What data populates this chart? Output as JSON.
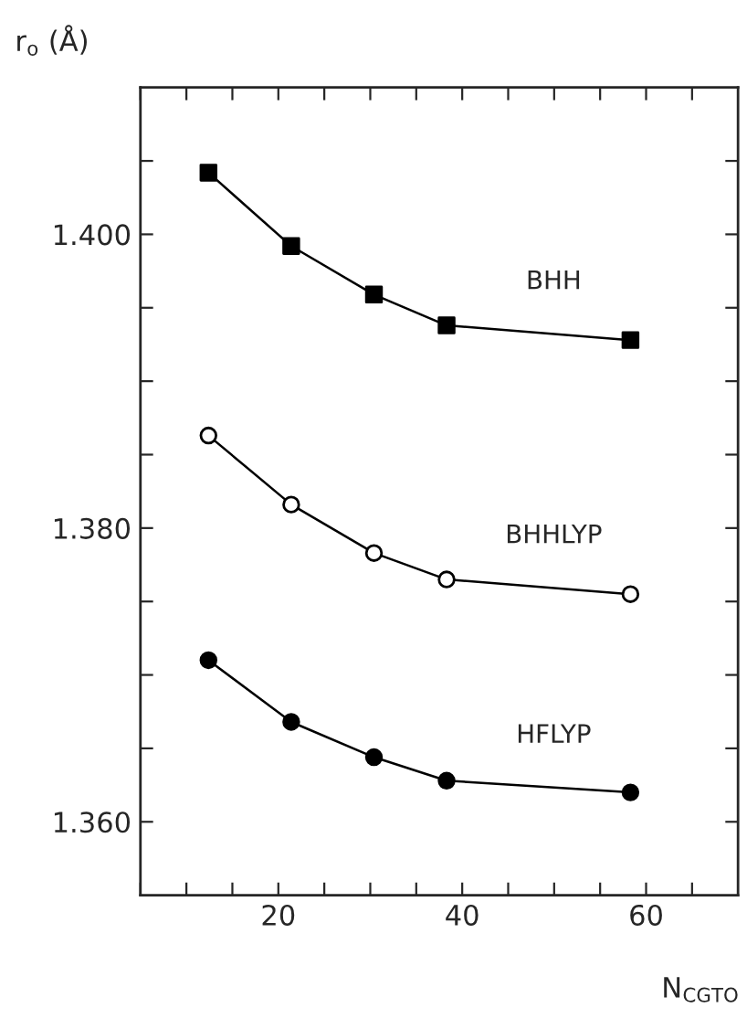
{
  "chart_data": {
    "type": "line",
    "ylabel": "r$_{o}$ (Å)",
    "xlabel": "N$_{CGTO}$",
    "xlim": [
      5,
      70
    ],
    "ylim": [
      1.355,
      1.41
    ],
    "xticks": [
      {
        "value": 5,
        "label": null
      },
      {
        "value": 10,
        "label": null
      },
      {
        "value": 15,
        "label": null
      },
      "20",
      {
        "value": 25,
        "label": null
      },
      {
        "value": 30,
        "label": null
      },
      {
        "value": 35,
        "label": null
      },
      40,
      {
        "value": 45,
        "label": null
      },
      {
        "value": 50,
        "label": null
      },
      {
        "value": 55,
        "label": null
      },
      60,
      {
        "value": 65,
        "label": null
      }
    ],
    "yticks": [
      {
        "value": 1.36,
        "label": "1.360"
      },
      {
        "value": 1.365,
        "label": null
      },
      {
        "value": 1.37,
        "label": null
      },
      {
        "value": 1.375,
        "label": null
      },
      {
        "value": 1.38,
        "label": "1.380"
      },
      {
        "value": 1.385,
        "label": null
      },
      {
        "value": 1.39,
        "label": null
      },
      {
        "value": 1.395,
        "label": null
      },
      {
        "value": 1.4,
        "label": "1.400"
      },
      {
        "value": 1.405,
        "label": null
      }
    ],
    "grid": false,
    "legend": false,
    "line_style": "solid",
    "series": [
      {
        "name": "BHH",
        "color": "#000000",
        "marker": "square",
        "x": [
          12.4,
          21.4,
          30.4,
          38.3,
          58.3
        ],
        "values": [
          1.4042,
          1.3992,
          1.3959,
          1.3938,
          1.3928
        ]
      },
      {
        "name": "BHHLYP",
        "color": "#000000",
        "marker": "circle",
        "colors": [
          "#ffffff",
          "#ffffff",
          "#ffffff",
          "#ffffff",
          "#ffffff"
        ],
        "x": [
          12.4,
          21.4,
          30.4,
          38.3,
          58.3
        ],
        "values": [
          1.3863,
          1.3816,
          1.3783,
          1.3765,
          1.3755
        ]
      },
      {
        "name": "HFLYP",
        "color": "#000000",
        "marker": "circle",
        "x": [
          12.4,
          21.4,
          30.4,
          38.3,
          58.3
        ],
        "values": [
          1.371,
          1.3668,
          1.3644,
          1.3628,
          1.362
        ]
      }
    ]
  }
}
